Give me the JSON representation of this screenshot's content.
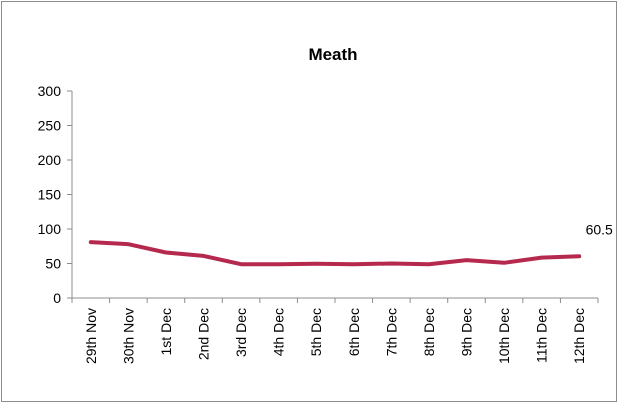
{
  "chart_data": {
    "type": "line",
    "title": "Meath",
    "xlabel": "",
    "ylabel": "",
    "categories": [
      "29th Nov",
      "30th Nov",
      "1st Dec",
      "2nd Dec",
      "3rd Dec",
      "4th Dec",
      "5th Dec",
      "6th Dec",
      "7th Dec",
      "8th Dec",
      "9th Dec",
      "10th Dec",
      "11th Dec",
      "12th Dec"
    ],
    "series": [
      {
        "values": [
          81,
          78,
          66,
          61,
          49,
          49,
          49.5,
          49,
          50,
          49,
          55,
          51,
          58.5,
          60.5
        ],
        "color": "#b5294e"
      }
    ],
    "ylim": [
      0,
      300
    ],
    "yticks": [
      0,
      50,
      100,
      150,
      200,
      250,
      300
    ],
    "grid": false,
    "legend": "none",
    "data_labels": [
      {
        "index": 13,
        "text": "60.5"
      }
    ]
  }
}
